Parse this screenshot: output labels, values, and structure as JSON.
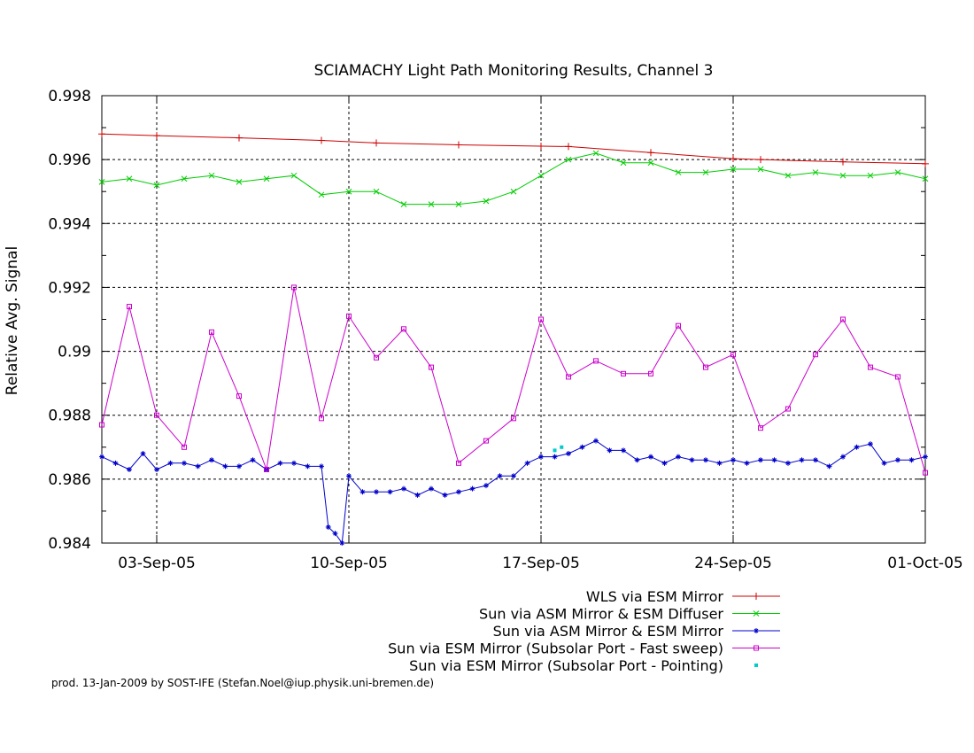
{
  "footer": "prod. 13-Jan-2009 by SOST-IFE (Stefan.Noel@iup.physik.uni-bremen.de)",
  "chart_data": {
    "type": "line",
    "title": "SCIAMACHY Light Path Monitoring Results, Channel 3",
    "xlabel": "",
    "ylabel": "Relative Avg. Signal",
    "x_range": [
      "2005-09-01",
      "2005-10-01"
    ],
    "x_ticks": [
      {
        "date": "2005-09-03",
        "label": "03-Sep-05"
      },
      {
        "date": "2005-09-10",
        "label": "10-Sep-05"
      },
      {
        "date": "2005-09-17",
        "label": "17-Sep-05"
      },
      {
        "date": "2005-09-24",
        "label": "24-Sep-05"
      },
      {
        "date": "2005-10-01",
        "label": "01-Oct-05"
      }
    ],
    "ylim": [
      0.984,
      0.998
    ],
    "y_ticks": [
      {
        "value": 0.984,
        "label": "0.984"
      },
      {
        "value": 0.986,
        "label": "0.986"
      },
      {
        "value": 0.988,
        "label": "0.988"
      },
      {
        "value": 0.99,
        "label": "0.99"
      },
      {
        "value": 0.992,
        "label": "0.992"
      },
      {
        "value": 0.994,
        "label": "0.994"
      },
      {
        "value": 0.996,
        "label": "0.996"
      },
      {
        "value": 0.998,
        "label": "0.998"
      }
    ],
    "grid": true,
    "legend_position": "bottom-right, below plot",
    "series": [
      {
        "name": "WLS via ESM Mirror",
        "color": "#cc0000",
        "marker": "plus",
        "x": [
          "2005-09-01",
          "2005-09-03",
          "2005-09-06",
          "2005-09-09",
          "2005-09-11",
          "2005-09-14",
          "2005-09-17",
          "2005-09-18",
          "2005-09-21",
          "2005-09-24",
          "2005-09-25",
          "2005-09-28",
          "2005-10-01"
        ],
        "y": [
          0.9968,
          0.99675,
          0.99668,
          0.9966,
          0.99652,
          0.99646,
          0.99642,
          0.99641,
          0.99622,
          0.99603,
          0.996,
          0.99593,
          0.99587
        ]
      },
      {
        "name": "Sun via ASM Mirror & ESM Diffuser",
        "color": "#00cc00",
        "marker": "x",
        "x": [
          "2005-09-01",
          "2005-09-02",
          "2005-09-03",
          "2005-09-04",
          "2005-09-05",
          "2005-09-06",
          "2005-09-07",
          "2005-09-08",
          "2005-09-09",
          "2005-09-10",
          "2005-09-11",
          "2005-09-12",
          "2005-09-13",
          "2005-09-14",
          "2005-09-15",
          "2005-09-16",
          "2005-09-17",
          "2005-09-18",
          "2005-09-19",
          "2005-09-20",
          "2005-09-21",
          "2005-09-22",
          "2005-09-23",
          "2005-09-24",
          "2005-09-25",
          "2005-09-26",
          "2005-09-27",
          "2005-09-28",
          "2005-09-29",
          "2005-09-30",
          "2005-10-01"
        ],
        "y": [
          0.9953,
          0.9954,
          0.9952,
          0.9954,
          0.9955,
          0.9953,
          0.9954,
          0.9955,
          0.9949,
          0.995,
          0.995,
          0.9946,
          0.9946,
          0.9946,
          0.9947,
          0.995,
          0.9955,
          0.996,
          0.9962,
          0.9959,
          0.9959,
          0.9956,
          0.9956,
          0.9957,
          0.9957,
          0.9955,
          0.9956,
          0.9955,
          0.9955,
          0.9956,
          0.9954
        ]
      },
      {
        "name": "Sun via ASM Mirror & ESM Mirror",
        "color": "#0000cc",
        "marker": "star",
        "x": [
          "2005-09-01",
          "2005-09-01 12:00",
          "2005-09-02",
          "2005-09-02 12:00",
          "2005-09-03",
          "2005-09-03 12:00",
          "2005-09-04",
          "2005-09-04 12:00",
          "2005-09-05",
          "2005-09-05 12:00",
          "2005-09-06",
          "2005-09-06 12:00",
          "2005-09-07",
          "2005-09-07 12:00",
          "2005-09-08",
          "2005-09-08 12:00",
          "2005-09-09",
          "2005-09-09 06:00",
          "2005-09-09 12:00",
          "2005-09-09 18:00",
          "2005-09-10",
          "2005-09-10 12:00",
          "2005-09-11",
          "2005-09-11 12:00",
          "2005-09-12",
          "2005-09-12 12:00",
          "2005-09-13",
          "2005-09-13 12:00",
          "2005-09-14",
          "2005-09-14 12:00",
          "2005-09-15",
          "2005-09-15 12:00",
          "2005-09-16",
          "2005-09-16 12:00",
          "2005-09-17",
          "2005-09-17 12:00",
          "2005-09-18",
          "2005-09-18 12:00",
          "2005-09-19",
          "2005-09-19 12:00",
          "2005-09-20",
          "2005-09-20 12:00",
          "2005-09-21",
          "2005-09-21 12:00",
          "2005-09-22",
          "2005-09-22 12:00",
          "2005-09-23",
          "2005-09-23 12:00",
          "2005-09-24",
          "2005-09-24 12:00",
          "2005-09-25",
          "2005-09-25 12:00",
          "2005-09-26",
          "2005-09-26 12:00",
          "2005-09-27",
          "2005-09-27 12:00",
          "2005-09-28",
          "2005-09-28 12:00",
          "2005-09-29",
          "2005-09-29 12:00",
          "2005-09-30",
          "2005-09-30 12:00",
          "2005-10-01"
        ],
        "y": [
          0.9867,
          0.9865,
          0.9863,
          0.9868,
          0.9863,
          0.9865,
          0.9865,
          0.9864,
          0.9866,
          0.9864,
          0.9864,
          0.9866,
          0.9863,
          0.9865,
          0.9865,
          0.9864,
          0.9864,
          0.9845,
          0.9843,
          0.984,
          0.9861,
          0.9856,
          0.9856,
          0.9856,
          0.9857,
          0.9855,
          0.9857,
          0.9855,
          0.9856,
          0.9857,
          0.9858,
          0.9861,
          0.9861,
          0.9865,
          0.9867,
          0.9867,
          0.9868,
          0.987,
          0.9872,
          0.9869,
          0.9869,
          0.9866,
          0.9867,
          0.9865,
          0.9867,
          0.9866,
          0.9866,
          0.9865,
          0.9866,
          0.9865,
          0.9866,
          0.9866,
          0.9865,
          0.9866,
          0.9866,
          0.9864,
          0.9867,
          0.987,
          0.9871,
          0.9865,
          0.9866,
          0.9866,
          0.9867
        ]
      },
      {
        "name": "Sun via ESM Mirror (Subsolar Port - Fast sweep)",
        "color": "#cc00cc",
        "marker": "square",
        "x": [
          "2005-09-01",
          "2005-09-02",
          "2005-09-03",
          "2005-09-04",
          "2005-09-05",
          "2005-09-06",
          "2005-09-07",
          "2005-09-08",
          "2005-09-09",
          "2005-09-10",
          "2005-09-11",
          "2005-09-12",
          "2005-09-13",
          "2005-09-14",
          "2005-09-15",
          "2005-09-16",
          "2005-09-17",
          "2005-09-18",
          "2005-09-19",
          "2005-09-20",
          "2005-09-21",
          "2005-09-22",
          "2005-09-23",
          "2005-09-24",
          "2005-09-25",
          "2005-09-26",
          "2005-09-27",
          "2005-09-28",
          "2005-09-29",
          "2005-09-30",
          "2005-10-01"
        ],
        "y": [
          0.9877,
          0.9914,
          0.988,
          0.987,
          0.9906,
          0.9886,
          0.9863,
          0.992,
          0.9879,
          0.9911,
          0.9898,
          0.9907,
          0.9895,
          0.9865,
          0.9872,
          0.9879,
          0.991,
          0.9892,
          0.9897,
          0.9893,
          0.9893,
          0.9908,
          0.9895,
          0.9899,
          0.9876,
          0.9882,
          0.9899,
          0.991,
          0.9895,
          0.9892,
          0.9862
        ]
      },
      {
        "name": "Sun via ESM Mirror (Subsolar Port - Pointing)",
        "color": "#00cccc",
        "marker": "point",
        "x": [
          "2005-09-17 12:00",
          "2005-09-17 18:00"
        ],
        "y": [
          0.9869,
          0.987
        ]
      }
    ]
  }
}
